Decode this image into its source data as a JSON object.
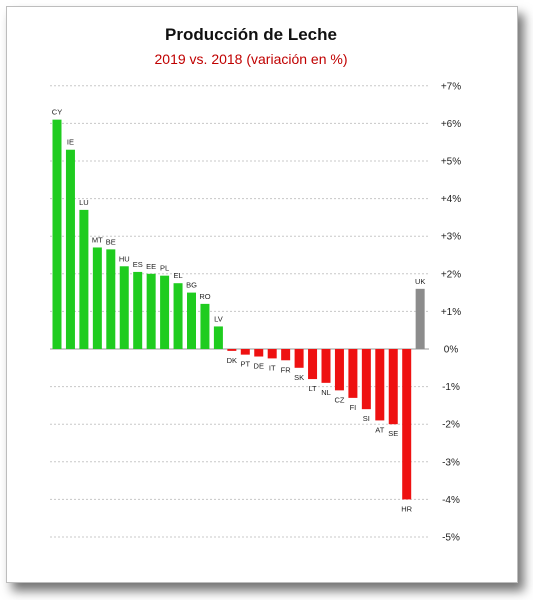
{
  "chart_data": {
    "type": "bar",
    "title": "Producción de Leche",
    "subtitle": "2019 vs. 2018 (variación en %)",
    "xlabel": "",
    "ylabel": "",
    "ylim": [
      -5,
      7
    ],
    "y_ticks": [
      {
        "value": 7,
        "label": "+7%"
      },
      {
        "value": 6,
        "label": "+6%"
      },
      {
        "value": 5,
        "label": "+5%"
      },
      {
        "value": 4,
        "label": "+4%"
      },
      {
        "value": 3,
        "label": "+3%"
      },
      {
        "value": 2,
        "label": "+2%"
      },
      {
        "value": 1,
        "label": "+1%"
      },
      {
        "value": 0,
        "label": "0%"
      },
      {
        "value": -1,
        "label": "-1%"
      },
      {
        "value": -2,
        "label": "-2%"
      },
      {
        "value": -3,
        "label": "-3%"
      },
      {
        "value": -4,
        "label": "-4%"
      },
      {
        "value": -5,
        "label": "-5%"
      }
    ],
    "y_axis_position": "right",
    "grid": "horizontal dotted",
    "legend": "none",
    "categories": [
      "CY",
      "IE",
      "LU",
      "MT",
      "BE",
      "HU",
      "ES",
      "EE",
      "PL",
      "EL",
      "BG",
      "RO",
      "LV",
      "DK",
      "PT",
      "DE",
      "IT",
      "FR",
      "SK",
      "LT",
      "NL",
      "CZ",
      "FI",
      "SI",
      "AT",
      "SE",
      "HR",
      "UK"
    ],
    "values": [
      6.1,
      5.3,
      3.7,
      2.7,
      2.65,
      2.2,
      2.05,
      2.0,
      1.95,
      1.75,
      1.5,
      1.2,
      0.6,
      -0.05,
      -0.15,
      -0.2,
      -0.25,
      -0.3,
      -0.5,
      -0.8,
      -0.9,
      -1.1,
      -1.3,
      -1.6,
      -1.9,
      -2.0,
      -4.0,
      1.6
    ],
    "colors": {
      "positive": "#1fcc1f",
      "negative": "#ee1111",
      "uk": "#8c8c8c",
      "subtitle": "#c00000",
      "gridline": "#c8c8c8",
      "zero_line": "#999999"
    }
  }
}
